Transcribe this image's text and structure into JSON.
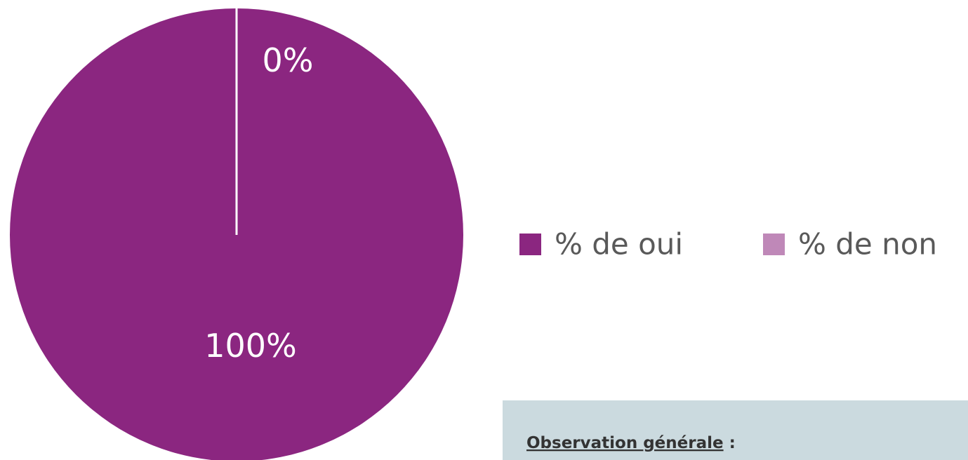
{
  "chart_data": {
    "type": "pie",
    "categories": [
      "% de oui",
      "% de non"
    ],
    "values": [
      100,
      0
    ],
    "value_labels": [
      "100%",
      "0%"
    ],
    "colors": [
      "#8b2680",
      "#bf88b8"
    ],
    "legend": "right"
  },
  "panel": {
    "heading": "Observation générale",
    "colon": ":"
  }
}
